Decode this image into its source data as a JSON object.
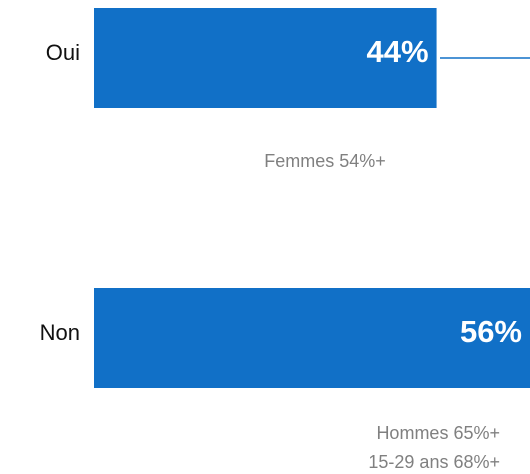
{
  "chart_data": {
    "type": "bar",
    "orientation": "horizontal",
    "categories": [
      "Oui",
      "Non"
    ],
    "values": [
      44,
      56
    ],
    "value_labels": [
      "44%",
      "56%"
    ],
    "color": "#1170c7",
    "xlim": [
      0,
      56
    ],
    "annotations": [
      [
        "Femmes 54%+"
      ],
      [
        "Hommes 65%+",
        "15-29 ans 68%+"
      ]
    ]
  }
}
